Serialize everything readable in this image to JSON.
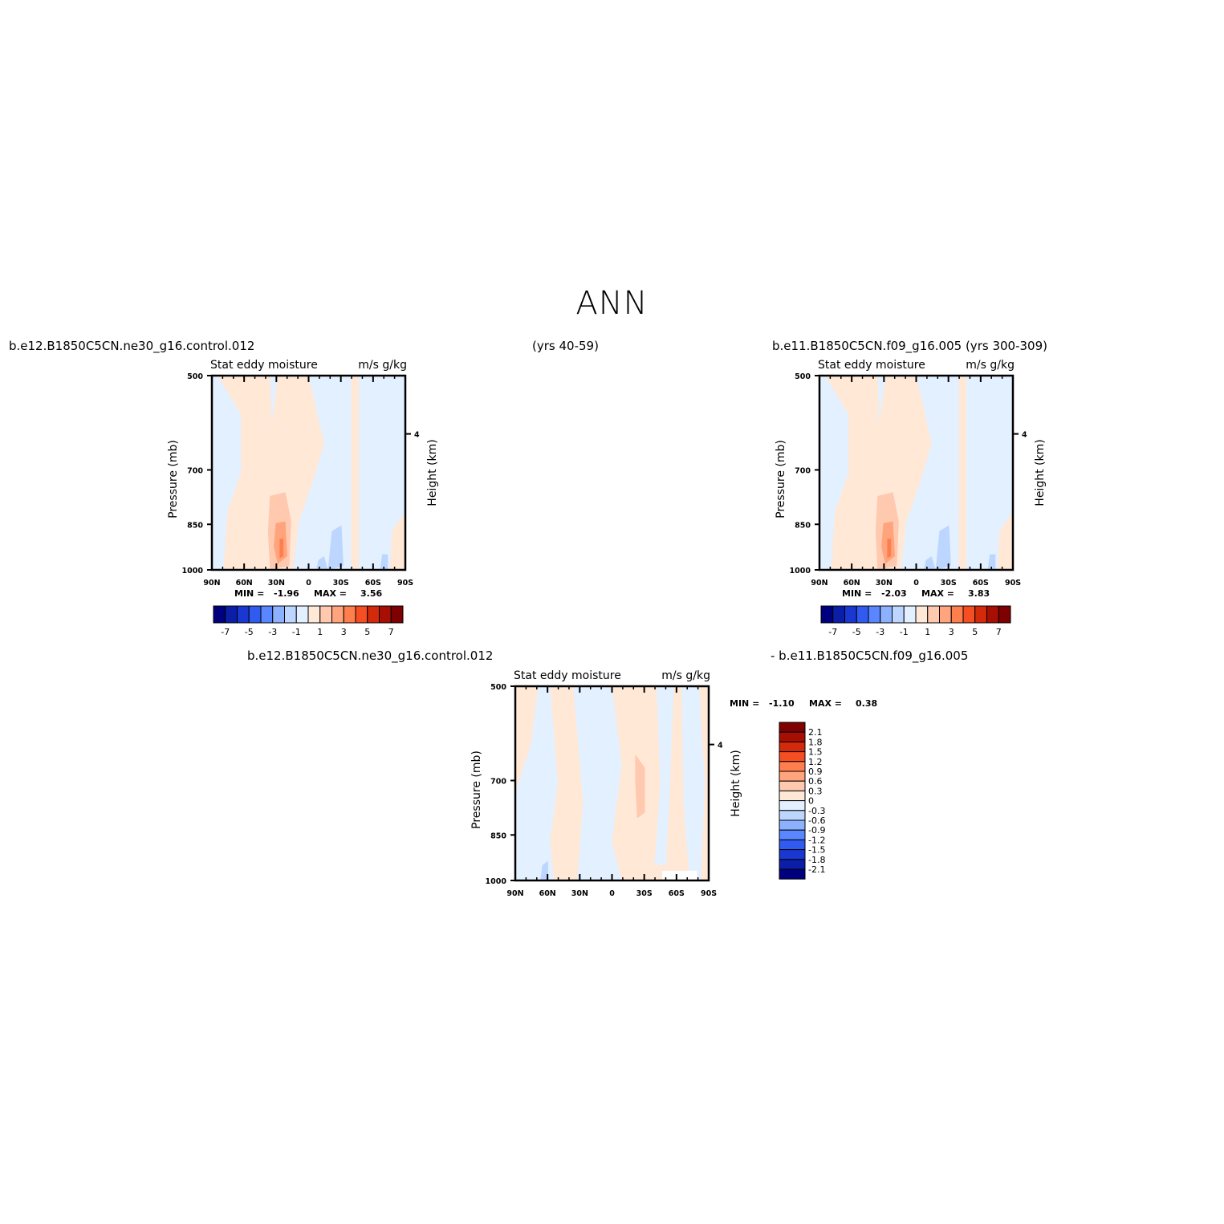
{
  "page_title": "ANN",
  "header": {
    "case_left": "b.e12.B1850C5CN.ne30_g16.control.012",
    "years_left": "(yrs 40-59)",
    "case_right": "b.e11.B1850C5CN.f09_g16.005 (yrs 300-309)"
  },
  "colors": {
    "abs_levels": [
      "#00007f",
      "#0a1ea8",
      "#1a37d2",
      "#2f5bf0",
      "#5a86ff",
      "#8cb2ff",
      "#bdd6ff",
      "#e3f0ff",
      "#ffe8d6",
      "#ffc9b0",
      "#ffa47c",
      "#ff7e4e",
      "#f54e22",
      "#d32a0c",
      "#a80f04",
      "#7f0000"
    ],
    "diff_levels": [
      "#00007f",
      "#0a1ea8",
      "#1a37d2",
      "#2f5bf0",
      "#5a86ff",
      "#8cb2ff",
      "#bdd6ff",
      "#e3f0ff",
      "#ffe8d6",
      "#ffc9b0",
      "#ffa47c",
      "#ff7e4e",
      "#f54e22",
      "#d32a0c",
      "#a80f04",
      "#7f0000"
    ]
  },
  "chart_data": [
    {
      "type": "heatmap",
      "case": "b.e12.B1850C5CN.ne30_g16.control.012",
      "title_left": "Stat eddy moisture",
      "title_right": "m/s g/kg",
      "ylabel": "Pressure (mb)",
      "ylabel_right": "Height (km)",
      "y_ticks": [
        "500",
        "700",
        "850",
        "1000"
      ],
      "y_right_ticks": [
        "4"
      ],
      "x_ticks": [
        "90N",
        "60N",
        "30N",
        "0",
        "30S",
        "60S",
        "90S"
      ],
      "stats": {
        "min_label": "MIN =",
        "min": "-1.96",
        "max_label": "MAX =",
        "max": "3.56"
      },
      "colorbar_labels": [
        "-7",
        "-5",
        "-3",
        "-1",
        "1",
        "3",
        "5",
        "7"
      ],
      "max_value": 3.56,
      "min_value": -1.96
    },
    {
      "type": "heatmap",
      "case": "b.e11.B1850C5CN.f09_g16.005",
      "title_left": "Stat eddy moisture",
      "title_right": "m/s g/kg",
      "ylabel": "Pressure (mb)",
      "ylabel_right": "Height (km)",
      "y_ticks": [
        "500",
        "700",
        "850",
        "1000"
      ],
      "y_right_ticks": [
        "4"
      ],
      "x_ticks": [
        "90N",
        "60N",
        "30N",
        "0",
        "30S",
        "60S",
        "90S"
      ],
      "stats": {
        "min_label": "MIN =",
        "min": "-2.03",
        "max_label": "MAX =",
        "max": "3.83"
      },
      "colorbar_labels": [
        "-7",
        "-5",
        "-3",
        "-1",
        "1",
        "3",
        "5",
        "7"
      ],
      "max_value": 3.83,
      "min_value": -2.03
    },
    {
      "type": "heatmap",
      "case": "b.e12.B1850C5CN.ne30_g16.control.012 - b.e11.B1850C5CN.f09_g16.005",
      "case_a": "b.e12.B1850C5CN.ne30_g16.control.012",
      "case_b": "- b.e11.B1850C5CN.f09_g16.005",
      "title_left": "Stat eddy moisture",
      "title_right": "m/s g/kg",
      "ylabel": "Pressure (mb)",
      "ylabel_right": "Height (km)",
      "y_ticks": [
        "500",
        "700",
        "850",
        "1000"
      ],
      "y_right_ticks": [
        "4"
      ],
      "x_ticks": [
        "90N",
        "60N",
        "30N",
        "0",
        "30S",
        "60S",
        "90S"
      ],
      "stats": {
        "min_label": "MIN =",
        "min": "-1.10",
        "max_label": "MAX =",
        "max": "0.38"
      },
      "colorbar_labels": [
        "2.1",
        "1.8",
        "1.5",
        "1.2",
        "0.9",
        "0.6",
        "0.3",
        "0",
        "-0.3",
        "-0.6",
        "-0.9",
        "-1.2",
        "-1.5",
        "-1.8",
        "-2.1"
      ],
      "max_value": 0.38,
      "min_value": -1.1
    }
  ]
}
